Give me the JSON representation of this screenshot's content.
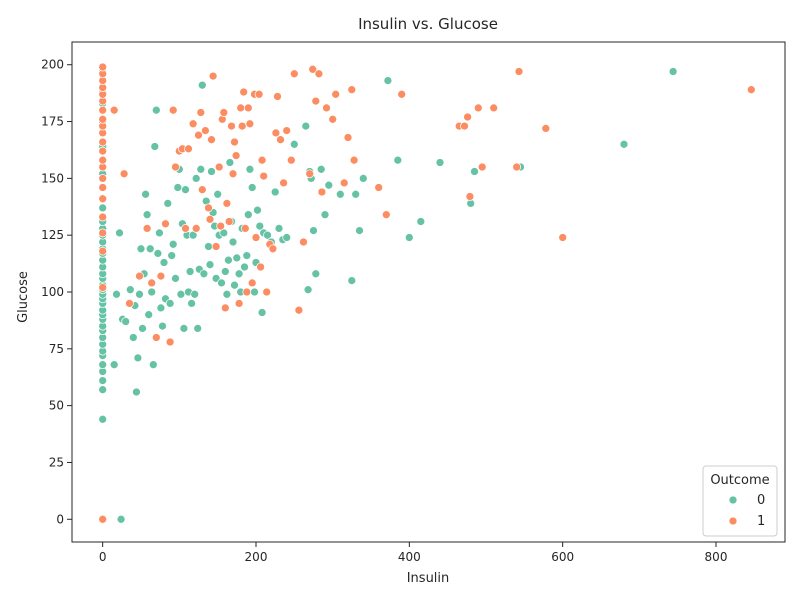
{
  "chart_data": {
    "type": "scatter",
    "title": "Insulin vs. Glucose",
    "xlabel": "Insulin",
    "ylabel": "Glucose",
    "xlim": [
      -40,
      890
    ],
    "ylim": [
      -10,
      210
    ],
    "xticks": [
      0,
      200,
      400,
      600,
      800
    ],
    "yticks": [
      0,
      25,
      50,
      75,
      100,
      125,
      150,
      175,
      200
    ],
    "grid": false,
    "legend": {
      "title": "Outcome",
      "placement": "lower-right"
    },
    "series": [
      {
        "name": "0",
        "color": "#66c2a5",
        "points": [
          [
            0,
            44
          ],
          [
            0,
            57
          ],
          [
            0,
            61
          ],
          [
            0,
            65
          ],
          [
            0,
            68
          ],
          [
            0,
            72
          ],
          [
            0,
            74
          ],
          [
            0,
            77
          ],
          [
            0,
            80
          ],
          [
            0,
            83
          ],
          [
            0,
            85
          ],
          [
            0,
            88
          ],
          [
            0,
            90
          ],
          [
            0,
            92
          ],
          [
            0,
            95
          ],
          [
            0,
            97
          ],
          [
            0,
            99
          ],
          [
            0,
            101
          ],
          [
            0,
            103
          ],
          [
            0,
            106
          ],
          [
            0,
            108
          ],
          [
            0,
            111
          ],
          [
            0,
            114
          ],
          [
            0,
            117
          ],
          [
            0,
            119
          ],
          [
            0,
            122
          ],
          [
            0,
            125
          ],
          [
            0,
            128
          ],
          [
            0,
            131
          ],
          [
            0,
            137
          ],
          [
            0,
            146
          ],
          [
            0,
            152
          ],
          [
            0,
            158
          ],
          [
            0,
            164
          ],
          [
            0,
            170
          ],
          [
            0,
            175
          ],
          [
            0,
            183
          ],
          [
            0,
            188
          ],
          [
            0,
            193
          ],
          [
            0,
            197
          ],
          [
            15,
            68
          ],
          [
            18,
            99
          ],
          [
            22,
            126
          ],
          [
            24,
            0
          ],
          [
            26,
            88
          ],
          [
            30,
            87
          ],
          [
            36,
            101
          ],
          [
            40,
            80
          ],
          [
            42,
            94
          ],
          [
            44,
            56
          ],
          [
            46,
            71
          ],
          [
            48,
            99
          ],
          [
            50,
            119
          ],
          [
            52,
            84
          ],
          [
            54,
            108
          ],
          [
            56,
            143
          ],
          [
            58,
            134
          ],
          [
            60,
            90
          ],
          [
            62,
            119
          ],
          [
            64,
            100
          ],
          [
            66,
            68
          ],
          [
            68,
            164
          ],
          [
            70,
            180
          ],
          [
            72,
            117
          ],
          [
            74,
            126
          ],
          [
            76,
            93
          ],
          [
            78,
            85
          ],
          [
            80,
            113
          ],
          [
            82,
            97
          ],
          [
            85,
            139
          ],
          [
            88,
            95
          ],
          [
            90,
            116
          ],
          [
            92,
            121
          ],
          [
            95,
            106
          ],
          [
            98,
            146
          ],
          [
            100,
            154
          ],
          [
            102,
            99
          ],
          [
            104,
            130
          ],
          [
            106,
            84
          ],
          [
            108,
            145
          ],
          [
            110,
            125
          ],
          [
            112,
            100
          ],
          [
            114,
            109
          ],
          [
            116,
            95
          ],
          [
            118,
            125
          ],
          [
            120,
            99
          ],
          [
            122,
            150
          ],
          [
            124,
            84
          ],
          [
            126,
            110
          ],
          [
            128,
            154
          ],
          [
            130,
            191
          ],
          [
            132,
            108
          ],
          [
            135,
            140
          ],
          [
            138,
            120
          ],
          [
            140,
            112
          ],
          [
            142,
            153
          ],
          [
            144,
            135
          ],
          [
            146,
            129
          ],
          [
            148,
            106
          ],
          [
            150,
            143
          ],
          [
            152,
            125
          ],
          [
            155,
            104
          ],
          [
            158,
            126
          ],
          [
            160,
            109
          ],
          [
            162,
            99
          ],
          [
            164,
            114
          ],
          [
            166,
            157
          ],
          [
            168,
            131
          ],
          [
            170,
            122
          ],
          [
            172,
            103
          ],
          [
            175,
            115
          ],
          [
            178,
            108
          ],
          [
            180,
            100
          ],
          [
            182,
            128
          ],
          [
            185,
            111
          ],
          [
            188,
            116
          ],
          [
            190,
            134
          ],
          [
            192,
            154
          ],
          [
            195,
            146
          ],
          [
            198,
            100
          ],
          [
            200,
            113
          ],
          [
            202,
            136
          ],
          [
            205,
            129
          ],
          [
            208,
            91
          ],
          [
            210,
            126
          ],
          [
            215,
            125
          ],
          [
            220,
            122
          ],
          [
            225,
            144
          ],
          [
            230,
            128
          ],
          [
            235,
            123
          ],
          [
            240,
            124
          ],
          [
            250,
            165
          ],
          [
            265,
            173
          ],
          [
            268,
            101
          ],
          [
            270,
            153
          ],
          [
            272,
            150
          ],
          [
            275,
            127
          ],
          [
            278,
            108
          ],
          [
            285,
            154
          ],
          [
            290,
            134
          ],
          [
            295,
            147
          ],
          [
            310,
            143
          ],
          [
            325,
            105
          ],
          [
            330,
            143
          ],
          [
            335,
            127
          ],
          [
            340,
            150
          ],
          [
            372,
            193
          ],
          [
            385,
            158
          ],
          [
            400,
            124
          ],
          [
            415,
            131
          ],
          [
            440,
            157
          ],
          [
            480,
            139
          ],
          [
            485,
            153
          ],
          [
            545,
            155
          ],
          [
            680,
            165
          ],
          [
            744,
            197
          ]
        ]
      },
      {
        "name": "1",
        "color": "#fc8d62",
        "points": [
          [
            0,
            0
          ],
          [
            0,
            102
          ],
          [
            0,
            118
          ],
          [
            0,
            126
          ],
          [
            0,
            133
          ],
          [
            0,
            141
          ],
          [
            0,
            146
          ],
          [
            0,
            150
          ],
          [
            0,
            155
          ],
          [
            0,
            158
          ],
          [
            0,
            162
          ],
          [
            0,
            166
          ],
          [
            0,
            170
          ],
          [
            0,
            173
          ],
          [
            0,
            176
          ],
          [
            0,
            180
          ],
          [
            0,
            184
          ],
          [
            0,
            187
          ],
          [
            0,
            190
          ],
          [
            0,
            193
          ],
          [
            0,
            196
          ],
          [
            0,
            199
          ],
          [
            15,
            180
          ],
          [
            28,
            152
          ],
          [
            35,
            95
          ],
          [
            48,
            107
          ],
          [
            58,
            128
          ],
          [
            64,
            104
          ],
          [
            70,
            80
          ],
          [
            76,
            107
          ],
          [
            82,
            130
          ],
          [
            88,
            78
          ],
          [
            92,
            180
          ],
          [
            95,
            155
          ],
          [
            100,
            162
          ],
          [
            104,
            163
          ],
          [
            108,
            128
          ],
          [
            112,
            163
          ],
          [
            118,
            174
          ],
          [
            122,
            128
          ],
          [
            125,
            169
          ],
          [
            128,
            179
          ],
          [
            130,
            145
          ],
          [
            134,
            171
          ],
          [
            138,
            137
          ],
          [
            140,
            132
          ],
          [
            142,
            167
          ],
          [
            144,
            195
          ],
          [
            148,
            120
          ],
          [
            152,
            155
          ],
          [
            154,
            129
          ],
          [
            156,
            176
          ],
          [
            158,
            179
          ],
          [
            160,
            93
          ],
          [
            162,
            139
          ],
          [
            165,
            131
          ],
          [
            168,
            173
          ],
          [
            170,
            152
          ],
          [
            172,
            166
          ],
          [
            174,
            160
          ],
          [
            178,
            95
          ],
          [
            180,
            181
          ],
          [
            182,
            173
          ],
          [
            184,
            188
          ],
          [
            186,
            128
          ],
          [
            188,
            100
          ],
          [
            190,
            181
          ],
          [
            192,
            174
          ],
          [
            195,
            104
          ],
          [
            198,
            187
          ],
          [
            200,
            124
          ],
          [
            204,
            187
          ],
          [
            206,
            111
          ],
          [
            208,
            158
          ],
          [
            210,
            151
          ],
          [
            214,
            100
          ],
          [
            218,
            121
          ],
          [
            222,
            119
          ],
          [
            226,
            170
          ],
          [
            228,
            186
          ],
          [
            232,
            167
          ],
          [
            236,
            148
          ],
          [
            240,
            171
          ],
          [
            246,
            158
          ],
          [
            250,
            196
          ],
          [
            256,
            92
          ],
          [
            262,
            122
          ],
          [
            270,
            152
          ],
          [
            274,
            198
          ],
          [
            278,
            184
          ],
          [
            282,
            196
          ],
          [
            286,
            144
          ],
          [
            292,
            181
          ],
          [
            300,
            176
          ],
          [
            304,
            187
          ],
          [
            315,
            148
          ],
          [
            320,
            168
          ],
          [
            325,
            189
          ],
          [
            328,
            158
          ],
          [
            360,
            146
          ],
          [
            370,
            134
          ],
          [
            390,
            187
          ],
          [
            465,
            173
          ],
          [
            472,
            173
          ],
          [
            476,
            177
          ],
          [
            479,
            142
          ],
          [
            490,
            181
          ],
          [
            495,
            155
          ],
          [
            510,
            181
          ],
          [
            540,
            155
          ],
          [
            543,
            197
          ],
          [
            578,
            172
          ],
          [
            600,
            124
          ],
          [
            846,
            189
          ]
        ]
      }
    ]
  }
}
